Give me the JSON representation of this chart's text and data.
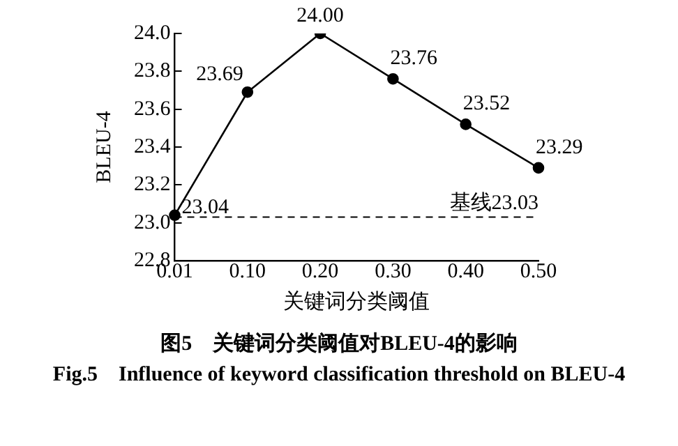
{
  "chart_data": {
    "type": "line",
    "title": "图5　关键词分类阈值对BLEU-4的影响",
    "subtitle": "Fig.5　Influence of keyword classification threshold on BLEU-4",
    "xlabel": "关键词分类阈值",
    "ylabel": "BLEU-4",
    "categories": [
      "0.01",
      "0.10",
      "0.20",
      "0.30",
      "0.40",
      "0.50"
    ],
    "series": [
      {
        "color": "#000000",
        "values": [
          23.04,
          23.69,
          24.0,
          23.76,
          23.52,
          23.29
        ]
      }
    ],
    "ylim": [
      22.8,
      24.0
    ],
    "yticks": [
      {
        "value": 22.8,
        "label": "22.8"
      },
      {
        "value": 23.0,
        "label": "23.0"
      },
      {
        "value": 23.2,
        "label": "23.2"
      },
      {
        "value": 23.4,
        "label": "23.4"
      },
      {
        "value": 23.6,
        "label": "23.6"
      },
      {
        "value": 23.8,
        "label": "23.8"
      },
      {
        "value": 24.0,
        "label": "24.0"
      }
    ],
    "ref_lines": [
      {
        "axis": "y",
        "value": 23.03,
        "label": "基线23.03",
        "color": "#000000",
        "line_style": "dashed"
      }
    ],
    "value_labels": [
      "23.04",
      "23.69",
      "24.00",
      "23.76",
      "23.52",
      "23.29"
    ],
    "marker": "circle",
    "line_style": "solid",
    "grid": false,
    "legend": false
  }
}
